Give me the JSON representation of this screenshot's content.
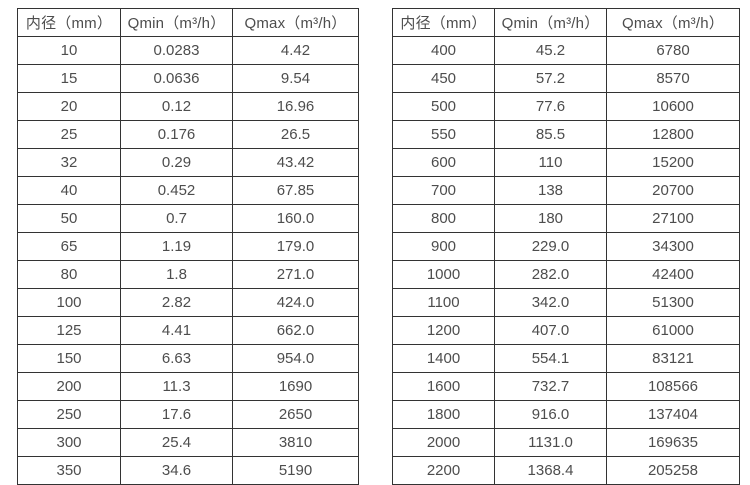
{
  "tables": [
    {
      "name": "flow-range-table-small-diameters",
      "headers": [
        "内径（mm）",
        "Qmin（m³/h）",
        "Qmax（m³/h）"
      ],
      "rows": [
        [
          "10",
          "0.0283",
          "4.42"
        ],
        [
          "15",
          "0.0636",
          "9.54"
        ],
        [
          "20",
          "0.12",
          "16.96"
        ],
        [
          "25",
          "0.176",
          "26.5"
        ],
        [
          "32",
          "0.29",
          "43.42"
        ],
        [
          "40",
          "0.452",
          "67.85"
        ],
        [
          "50",
          "0.7",
          "160.0"
        ],
        [
          "65",
          "1.19",
          "179.0"
        ],
        [
          "80",
          "1.8",
          "271.0"
        ],
        [
          "100",
          "2.82",
          "424.0"
        ],
        [
          "125",
          "4.41",
          "662.0"
        ],
        [
          "150",
          "6.63",
          "954.0"
        ],
        [
          "200",
          "11.3",
          "1690"
        ],
        [
          "250",
          "17.6",
          "2650"
        ],
        [
          "300",
          "25.4",
          "3810"
        ],
        [
          "350",
          "34.6",
          "5190"
        ]
      ]
    },
    {
      "name": "flow-range-table-large-diameters",
      "headers": [
        "内径（mm）",
        "Qmin（m³/h）",
        "Qmax（m³/h）"
      ],
      "rows": [
        [
          "400",
          "45.2",
          "6780"
        ],
        [
          "450",
          "57.2",
          "8570"
        ],
        [
          "500",
          "77.6",
          "10600"
        ],
        [
          "550",
          "85.5",
          "12800"
        ],
        [
          "600",
          "110",
          "15200"
        ],
        [
          "700",
          "138",
          "20700"
        ],
        [
          "800",
          "180",
          "27100"
        ],
        [
          "900",
          "229.0",
          "34300"
        ],
        [
          "1000",
          "282.0",
          "42400"
        ],
        [
          "1100",
          "342.0",
          "51300"
        ],
        [
          "1200",
          "407.0",
          "61000"
        ],
        [
          "1400",
          "554.1",
          "83121"
        ],
        [
          "1600",
          "732.7",
          "108566"
        ],
        [
          "1800",
          "916.0",
          "137404"
        ],
        [
          "2000",
          "1131.0",
          "169635"
        ],
        [
          "2200",
          "1368.4",
          "205258"
        ]
      ]
    }
  ],
  "colors": {
    "border": "#333333",
    "text": "#4d4d4d",
    "background": "#ffffff"
  }
}
